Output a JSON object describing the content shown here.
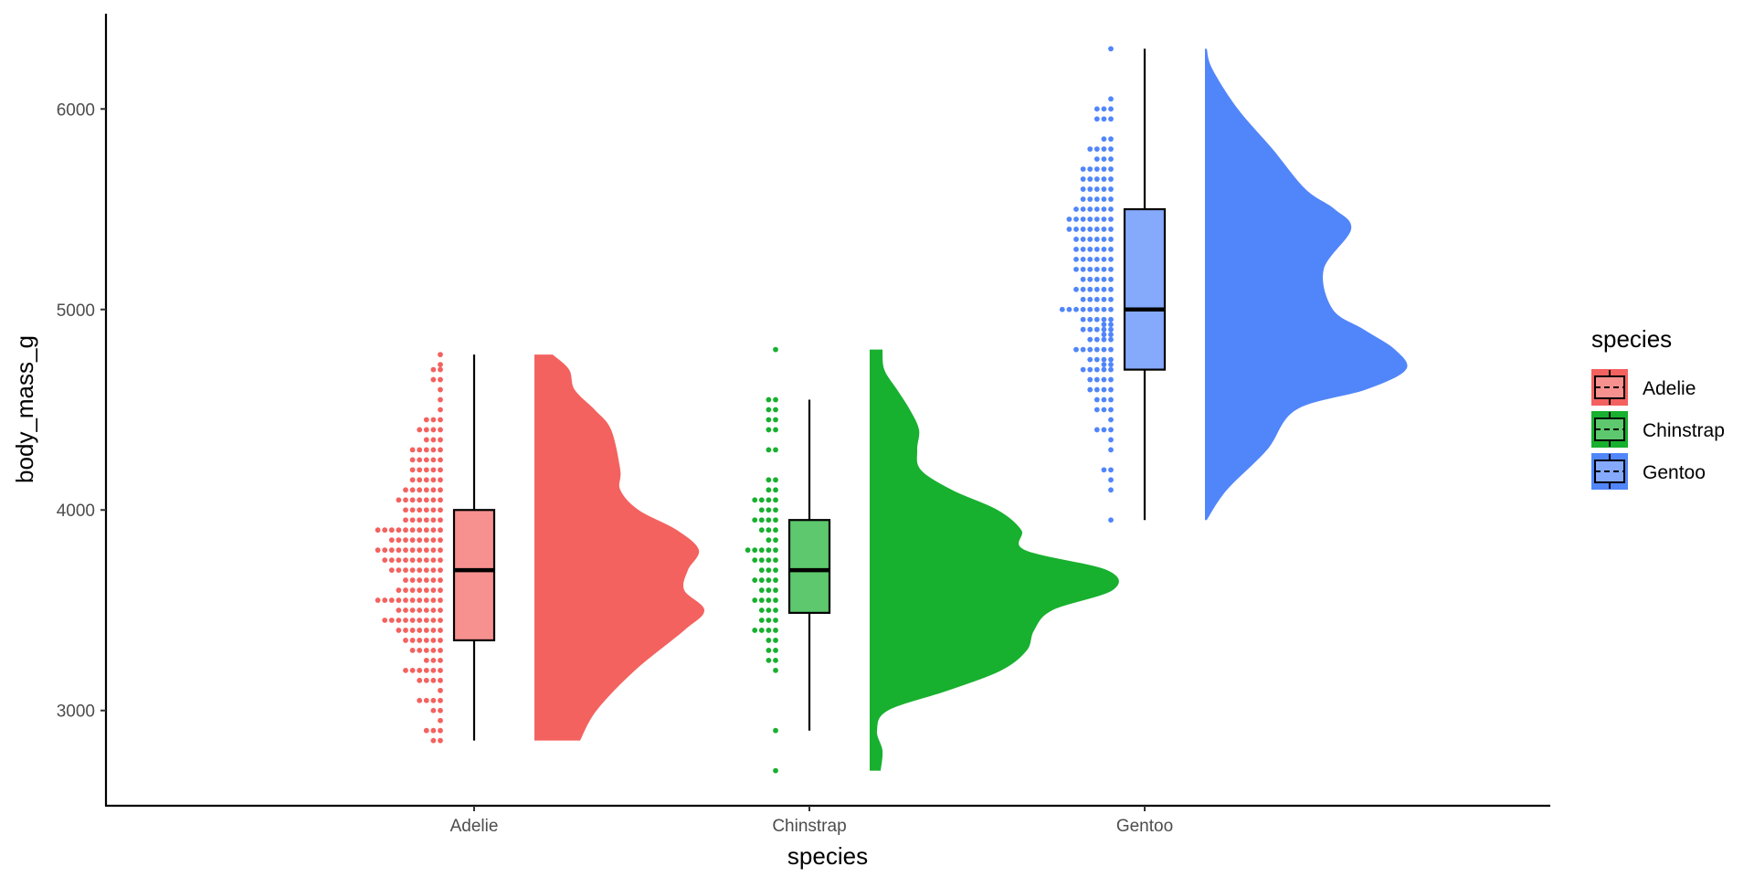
{
  "chart_data": {
    "type": "raincloud",
    "xlabel": "species",
    "ylabel": "body_mass_g",
    "categories": [
      "Adelie",
      "Chinstrap",
      "Gentoo"
    ],
    "ylim": [
      2525,
      6475
    ],
    "yticks": [
      3000,
      4000,
      5000,
      6000
    ],
    "grid": false,
    "legend": {
      "title": "species",
      "position": "right"
    },
    "series": [
      {
        "name": "Adelie",
        "color": "#F3625F",
        "box": {
          "min": 2850,
          "q1": 3350,
          "median": 3700,
          "q3": 4000,
          "max": 4775
        },
        "density": [
          [
            2850,
            0.25
          ],
          [
            3000,
            0.34
          ],
          [
            3200,
            0.55
          ],
          [
            3400,
            0.82
          ],
          [
            3500,
            0.93
          ],
          [
            3600,
            0.82
          ],
          [
            3700,
            0.84
          ],
          [
            3800,
            0.9
          ],
          [
            3900,
            0.78
          ],
          [
            4000,
            0.57
          ],
          [
            4100,
            0.47
          ],
          [
            4200,
            0.47
          ],
          [
            4400,
            0.42
          ],
          [
            4500,
            0.33
          ],
          [
            4600,
            0.22
          ],
          [
            4700,
            0.19
          ],
          [
            4775,
            0.1
          ]
        ],
        "dots": [
          [
            2850,
            2
          ],
          [
            2900,
            3
          ],
          [
            2950,
            1
          ],
          [
            3000,
            2
          ],
          [
            3050,
            4
          ],
          [
            3100,
            1
          ],
          [
            3150,
            4
          ],
          [
            3200,
            6
          ],
          [
            3250,
            3
          ],
          [
            3300,
            5
          ],
          [
            3350,
            6
          ],
          [
            3400,
            7
          ],
          [
            3450,
            9
          ],
          [
            3500,
            7
          ],
          [
            3550,
            10
          ],
          [
            3600,
            7
          ],
          [
            3650,
            6
          ],
          [
            3700,
            8
          ],
          [
            3750,
            9
          ],
          [
            3800,
            10
          ],
          [
            3850,
            8
          ],
          [
            3900,
            10
          ],
          [
            3950,
            6
          ],
          [
            4000,
            6
          ],
          [
            4050,
            7
          ],
          [
            4100,
            6
          ],
          [
            4150,
            5
          ],
          [
            4200,
            5
          ],
          [
            4250,
            5
          ],
          [
            4300,
            5
          ],
          [
            4350,
            3
          ],
          [
            4400,
            4
          ],
          [
            4450,
            3
          ],
          [
            4500,
            1
          ],
          [
            4550,
            1
          ],
          [
            4600,
            1
          ],
          [
            4650,
            2
          ],
          [
            4700,
            2
          ],
          [
            4725,
            1
          ],
          [
            4775,
            1
          ]
        ]
      },
      {
        "name": "Chinstrap",
        "color": "#18B02F",
        "box": {
          "min": 2900,
          "q1": 3487,
          "median": 3700,
          "q3": 3950,
          "max": 4550
        },
        "density": [
          [
            2700,
            0.06
          ],
          [
            2800,
            0.07
          ],
          [
            2900,
            0.04
          ],
          [
            3000,
            0.1
          ],
          [
            3100,
            0.43
          ],
          [
            3200,
            0.72
          ],
          [
            3300,
            0.86
          ],
          [
            3400,
            0.9
          ],
          [
            3500,
            1.0
          ],
          [
            3600,
            1.33
          ],
          [
            3700,
            1.3
          ],
          [
            3800,
            0.85
          ],
          [
            3900,
            0.83
          ],
          [
            4000,
            0.7
          ],
          [
            4100,
            0.45
          ],
          [
            4200,
            0.28
          ],
          [
            4300,
            0.26
          ],
          [
            4400,
            0.27
          ],
          [
            4500,
            0.22
          ],
          [
            4600,
            0.15
          ],
          [
            4700,
            0.08
          ],
          [
            4800,
            0.07
          ]
        ],
        "dots": [
          [
            2700,
            1
          ],
          [
            2900,
            1
          ],
          [
            3200,
            1
          ],
          [
            3250,
            2
          ],
          [
            3300,
            2
          ],
          [
            3350,
            2
          ],
          [
            3400,
            4
          ],
          [
            3450,
            3
          ],
          [
            3500,
            3
          ],
          [
            3550,
            4
          ],
          [
            3600,
            3
          ],
          [
            3650,
            4
          ],
          [
            3700,
            3
          ],
          [
            3750,
            4
          ],
          [
            3800,
            5
          ],
          [
            3850,
            2
          ],
          [
            3900,
            3
          ],
          [
            3950,
            4
          ],
          [
            4000,
            3
          ],
          [
            4050,
            4
          ],
          [
            4100,
            2
          ],
          [
            4150,
            2
          ],
          [
            4300,
            2
          ],
          [
            4400,
            2
          ],
          [
            4450,
            2
          ],
          [
            4500,
            2
          ],
          [
            4550,
            2
          ],
          [
            4800,
            1
          ]
        ]
      },
      {
        "name": "Gentoo",
        "color": "#5186FA",
        "box": {
          "min": 3950,
          "q1": 4700,
          "median": 5000,
          "q3": 5500,
          "max": 6300
        },
        "density": [
          [
            3950,
            0.01
          ],
          [
            4100,
            0.12
          ],
          [
            4300,
            0.34
          ],
          [
            4500,
            0.5
          ],
          [
            4600,
            0.88
          ],
          [
            4700,
            1.1
          ],
          [
            4800,
            1.04
          ],
          [
            4900,
            0.87
          ],
          [
            5000,
            0.7
          ],
          [
            5200,
            0.65
          ],
          [
            5400,
            0.8
          ],
          [
            5500,
            0.71
          ],
          [
            5600,
            0.55
          ],
          [
            5800,
            0.37
          ],
          [
            6000,
            0.18
          ],
          [
            6200,
            0.04
          ],
          [
            6300,
            0.01
          ]
        ],
        "dots": [
          [
            3950,
            1
          ],
          [
            4100,
            1
          ],
          [
            4150,
            1
          ],
          [
            4200,
            2
          ],
          [
            4300,
            1
          ],
          [
            4350,
            1
          ],
          [
            4400,
            3
          ],
          [
            4450,
            1
          ],
          [
            4500,
            3
          ],
          [
            4550,
            3
          ],
          [
            4600,
            4
          ],
          [
            4650,
            4
          ],
          [
            4700,
            5
          ],
          [
            4725,
            2
          ],
          [
            4750,
            4
          ],
          [
            4800,
            6
          ],
          [
            4850,
            4
          ],
          [
            4875,
            2
          ],
          [
            4900,
            5
          ],
          [
            4925,
            2
          ],
          [
            4950,
            5
          ],
          [
            5000,
            8
          ],
          [
            5050,
            5
          ],
          [
            5100,
            6
          ],
          [
            5150,
            5
          ],
          [
            5200,
            6
          ],
          [
            5250,
            6
          ],
          [
            5300,
            6
          ],
          [
            5350,
            6
          ],
          [
            5400,
            7
          ],
          [
            5450,
            7
          ],
          [
            5500,
            6
          ],
          [
            5550,
            5
          ],
          [
            5600,
            5
          ],
          [
            5650,
            5
          ],
          [
            5700,
            5
          ],
          [
            5750,
            3
          ],
          [
            5800,
            4
          ],
          [
            5850,
            2
          ],
          [
            5950,
            3
          ],
          [
            6000,
            3
          ],
          [
            6050,
            1
          ],
          [
            6300,
            1
          ]
        ]
      }
    ]
  }
}
